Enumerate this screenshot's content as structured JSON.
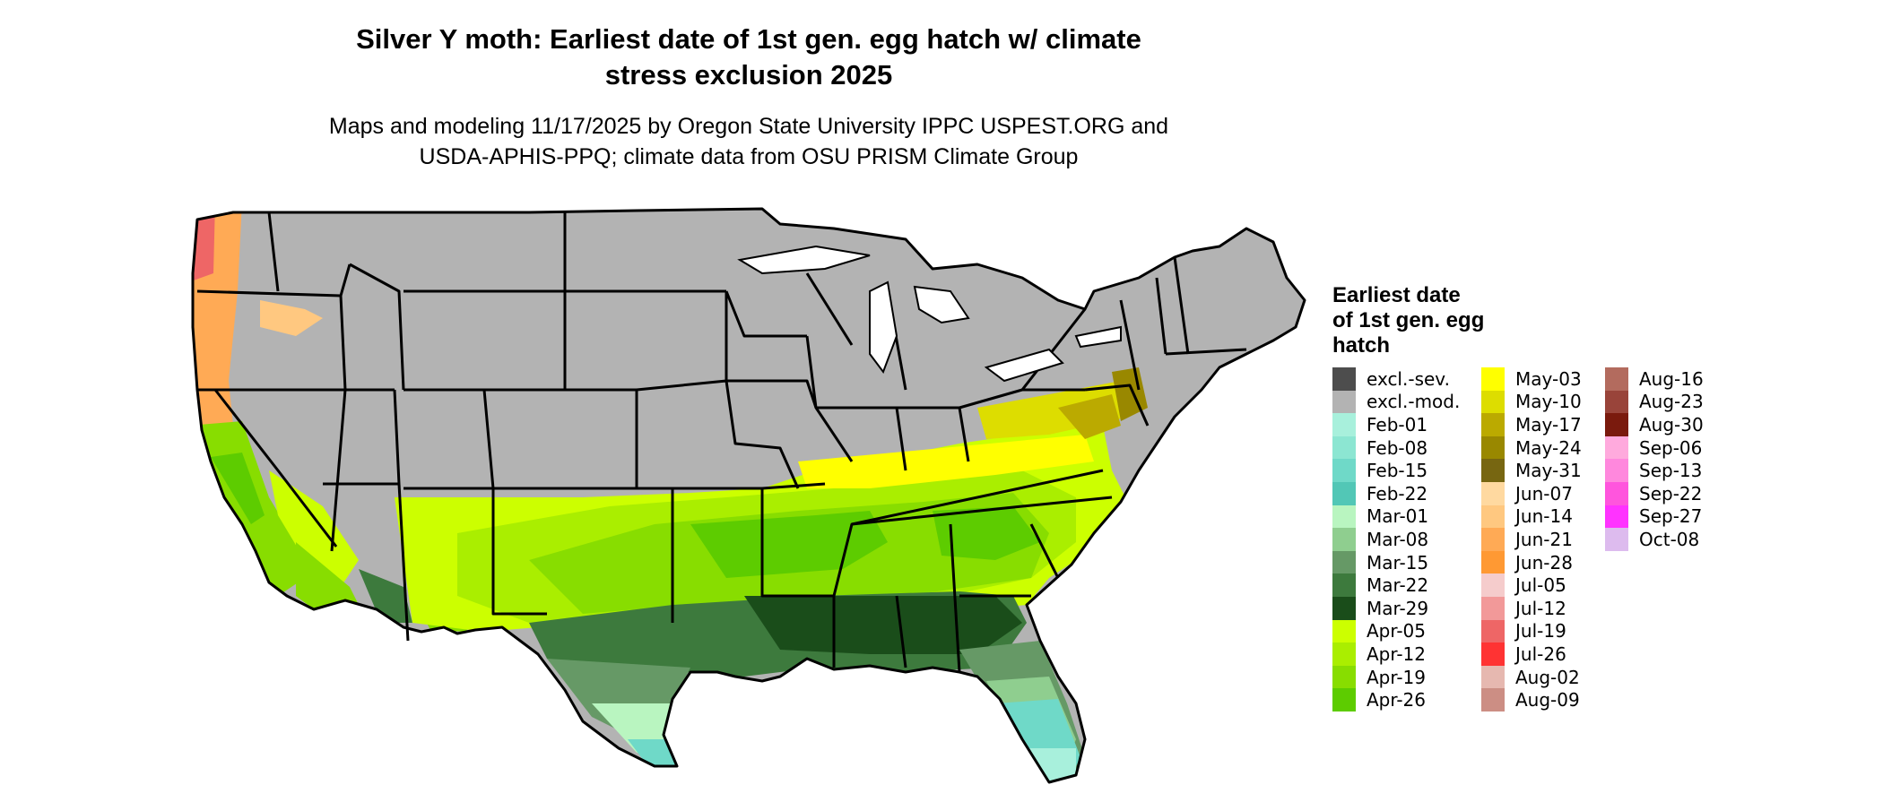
{
  "title_lines": [
    "Silver Y moth: Earliest date of 1st gen. egg hatch w/ climate",
    "stress exclusion 2025"
  ],
  "subtitle_lines": [
    "Maps and modeling 11/17/2025 by Oregon State University IPPC USPEST.ORG and",
    "USDA-APHIS-PPQ; climate data from OSU PRISM Climate Group"
  ],
  "legend": {
    "title_lines": [
      "Earliest date",
      "of 1st gen. egg",
      "hatch"
    ],
    "columns": [
      [
        {
          "label": "excl.-sev.",
          "color": "#4d4d4d"
        },
        {
          "label": "excl.-mod.",
          "color": "#b3b3b3"
        },
        {
          "label": "Feb-01",
          "color": "#a8f0dc"
        },
        {
          "label": "Feb-08",
          "color": "#8ce6d2"
        },
        {
          "label": "Feb-15",
          "color": "#6fd9c8"
        },
        {
          "label": "Feb-22",
          "color": "#52c7b6"
        },
        {
          "label": "Mar-01",
          "color": "#b9f5c0"
        },
        {
          "label": "Mar-08",
          "color": "#8fce8f"
        },
        {
          "label": "Mar-15",
          "color": "#669966"
        },
        {
          "label": "Mar-22",
          "color": "#3d7a3d"
        },
        {
          "label": "Mar-29",
          "color": "#1a4d1a"
        },
        {
          "label": "Apr-05",
          "color": "#ccff00"
        },
        {
          "label": "Apr-12",
          "color": "#aaee00"
        },
        {
          "label": "Apr-19",
          "color": "#88dd00"
        },
        {
          "label": "Apr-26",
          "color": "#5dcc00"
        }
      ],
      [
        {
          "label": "May-03",
          "color": "#ffff00"
        },
        {
          "label": "May-10",
          "color": "#dddd00"
        },
        {
          "label": "May-17",
          "color": "#bbaa00"
        },
        {
          "label": "May-24",
          "color": "#998800"
        },
        {
          "label": "May-31",
          "color": "#776611"
        },
        {
          "label": "Jun-07",
          "color": "#ffd9a0"
        },
        {
          "label": "Jun-14",
          "color": "#ffc880"
        },
        {
          "label": "Jun-21",
          "color": "#ffaa55"
        },
        {
          "label": "Jun-28",
          "color": "#ff9933"
        },
        {
          "label": "Jul-05",
          "color": "#f5cccc"
        },
        {
          "label": "Jul-12",
          "color": "#f29999"
        },
        {
          "label": "Jul-19",
          "color": "#ee6666"
        },
        {
          "label": "Jul-26",
          "color": "#ff3333"
        },
        {
          "label": "Aug-02",
          "color": "#e6b8b0"
        },
        {
          "label": "Aug-09",
          "color": "#cc8e84"
        }
      ],
      [
        {
          "label": "Aug-16",
          "color": "#b36b5e"
        },
        {
          "label": "Aug-23",
          "color": "#99443a"
        },
        {
          "label": "Aug-30",
          "color": "#7a1a0d"
        },
        {
          "label": "Sep-06",
          "color": "#ffaadd"
        },
        {
          "label": "Sep-13",
          "color": "#ff88dd"
        },
        {
          "label": "Sep-22",
          "color": "#ff55dd"
        },
        {
          "label": "Sep-27",
          "color": "#ff33ff"
        },
        {
          "label": "Oct-08",
          "color": "#ddbbee"
        }
      ]
    ]
  }
}
